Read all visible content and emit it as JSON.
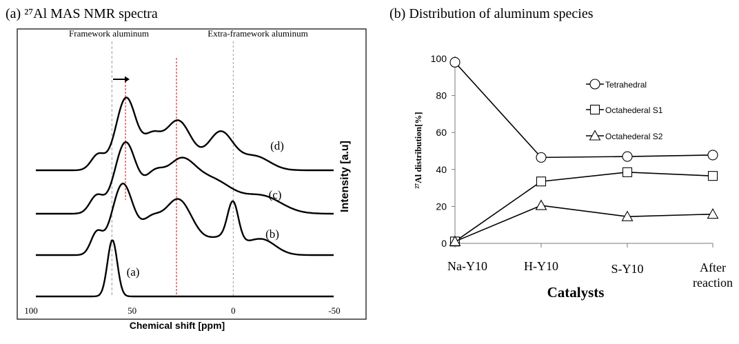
{
  "chart_data": [
    {
      "type": "line",
      "panel_title": "(a) ²⁷Al MAS NMR spectra",
      "xlabel": "Chemical shift [ppm]",
      "ylabel": "Intensity [a.u]",
      "xlim": [
        100,
        -50
      ],
      "x_ticks": [
        "100",
        "50",
        "0",
        "-50"
      ],
      "markers": [
        {
          "label": "Framework aluminum",
          "x": 60
        },
        {
          "label": "Extra-framework aluminum",
          "x": 0
        }
      ],
      "series_labels": [
        "(a)",
        "(b)",
        "(c)",
        "(d)"
      ]
    },
    {
      "type": "line",
      "panel_title": "(b) Distribution of aluminum species",
      "xlabel": "Catalysts",
      "ylabel": "²⁷Al distribution[%]",
      "ylim": [
        0,
        100
      ],
      "y_ticks": [
        "0",
        "20",
        "40",
        "60",
        "80",
        "100"
      ],
      "categories": [
        "Na-Y10",
        "H-Y10",
        "S-Y10",
        "After reaction"
      ],
      "legend_position": "top-right",
      "series": [
        {
          "name": "Tetrahedral",
          "marker": "circle",
          "values": [
            98,
            46.5,
            47,
            47.8
          ]
        },
        {
          "name": "Octahederal S1",
          "marker": "square",
          "values": [
            1,
            33.5,
            38.5,
            36.5
          ]
        },
        {
          "name": "Octahederal S2",
          "marker": "triangle",
          "values": [
            1,
            20.5,
            14.5,
            15.8
          ]
        }
      ]
    }
  ]
}
